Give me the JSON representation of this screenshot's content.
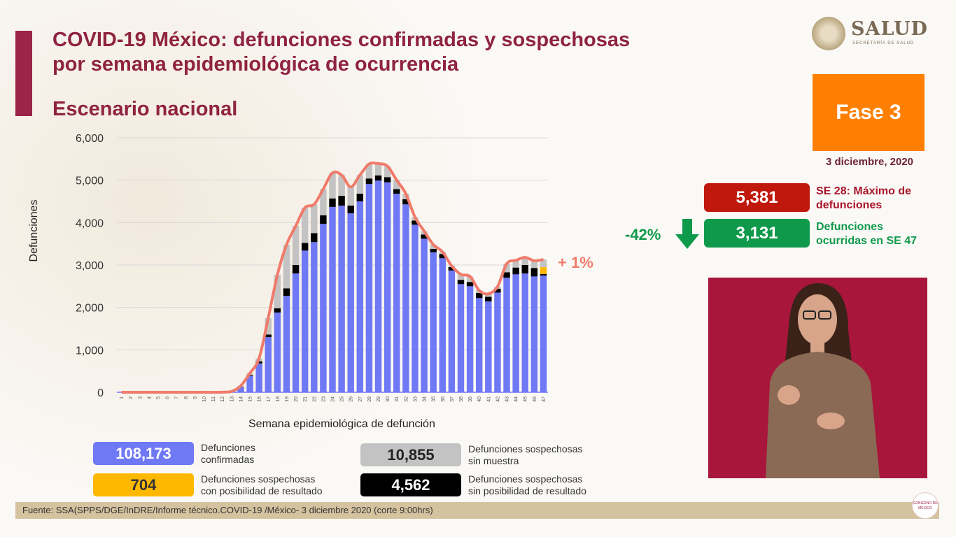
{
  "header": {
    "title_line1": "COVID-19 México: defunciones confirmadas y sospechosas",
    "title_line2": "por semana epidemiológica de ocurrencia",
    "subtitle": "Escenario nacional"
  },
  "logo": {
    "name": "SALUD",
    "sub": "SECRETARÍA DE SALUD"
  },
  "phase": {
    "label": "Fase 3",
    "color": "#ff8000"
  },
  "date": "3 diciembre, 2020",
  "kpis": {
    "max": {
      "value": "5,381",
      "label_line1": "SE 28: Máximo de",
      "label_line2": "defunciones",
      "color": "#c0180c"
    },
    "current": {
      "value": "3,131",
      "label_line1": "Defunciones",
      "label_line2": "ocurridas en SE 47",
      "color": "#0f9a4b"
    },
    "change": "-42%"
  },
  "legend": [
    {
      "value": "108,173",
      "label_line1": "Defunciones",
      "label_line2": "confirmadas",
      "color": "#6f78f5"
    },
    {
      "value": "10,855",
      "label_line1": "Defunciones sospechosas",
      "label_line2": "sin muestra",
      "color": "#c3c3c3"
    },
    {
      "value": "704",
      "label_line1": "Defunciones sospechosas",
      "label_line2": "con posibilidad de resultado",
      "color": "#ffb800"
    },
    {
      "value": "4,562",
      "label_line1": "Defunciones sospechosas",
      "label_line2": "sin posibilidad de resultado",
      "color": "#000000"
    }
  ],
  "chart_data": {
    "type": "bar",
    "stacked": true,
    "xlabel": "Semana epidemiológica de defunción",
    "ylabel": "Defunciones",
    "ylim": [
      0,
      6000
    ],
    "yticks": [
      "0",
      "1,000",
      "2,000",
      "3,000",
      "4,000",
      "5,000",
      "6,000"
    ],
    "grid": true,
    "annotation": "+ 1%",
    "categories": [
      "1",
      "2",
      "3",
      "4",
      "5",
      "6",
      "7",
      "8",
      "9",
      "10",
      "11",
      "12",
      "13",
      "14",
      "15",
      "16",
      "17",
      "18",
      "19",
      "20",
      "21",
      "22",
      "23",
      "24",
      "25",
      "26",
      "27",
      "28",
      "29",
      "30",
      "31",
      "32",
      "33",
      "34",
      "35",
      "36",
      "37",
      "38",
      "39",
      "40",
      "41",
      "42",
      "43",
      "44",
      "45",
      "46",
      "47"
    ],
    "series": [
      {
        "name": "Defunciones confirmadas",
        "color": "#6f78f5",
        "values": [
          0,
          0,
          0,
          0,
          0,
          0,
          0,
          0,
          0,
          0,
          0,
          3,
          15,
          120,
          380,
          680,
          1300,
          1880,
          2270,
          2800,
          3340,
          3540,
          3970,
          4370,
          4400,
          4220,
          4500,
          4910,
          4990,
          4950,
          4680,
          4430,
          3950,
          3620,
          3300,
          3160,
          2870,
          2550,
          2500,
          2220,
          2140,
          2350,
          2700,
          2780,
          2800,
          2730,
          2750
        ]
      },
      {
        "name": "Defunciones sospechosas sin posibilidad de resultado",
        "color": "#000000",
        "values": [
          0,
          0,
          0,
          0,
          0,
          0,
          0,
          0,
          0,
          0,
          0,
          0,
          0,
          10,
          20,
          50,
          60,
          100,
          180,
          200,
          180,
          210,
          200,
          200,
          230,
          180,
          180,
          130,
          120,
          120,
          110,
          120,
          100,
          100,
          80,
          100,
          80,
          100,
          100,
          120,
          110,
          90,
          130,
          160,
          200,
          200,
          40
        ]
      },
      {
        "name": "Defunciones sospechosas con posibilidad de resultado",
        "color": "#ffb800",
        "values": [
          0,
          0,
          0,
          0,
          0,
          0,
          0,
          0,
          0,
          0,
          0,
          0,
          0,
          0,
          0,
          0,
          0,
          0,
          0,
          0,
          0,
          0,
          0,
          0,
          0,
          0,
          0,
          0,
          0,
          0,
          0,
          0,
          0,
          0,
          0,
          0,
          0,
          0,
          0,
          0,
          0,
          0,
          0,
          0,
          0,
          0,
          160
        ]
      },
      {
        "name": "Defunciones sospechosas sin muestra",
        "color": "#c3c3c3",
        "values": [
          0,
          0,
          0,
          0,
          0,
          0,
          0,
          0,
          0,
          0,
          0,
          0,
          5,
          20,
          50,
          70,
          390,
          790,
          1030,
          920,
          830,
          680,
          620,
          600,
          490,
          440,
          440,
          341,
          280,
          260,
          210,
          130,
          80,
          80,
          100,
          50,
          30,
          130,
          130,
          60,
          70,
          50,
          200,
          170,
          180,
          170,
          181
        ]
      }
    ],
    "trend_line_color": "#f07b6b"
  },
  "footer": "Fuente: SSA(SPPS/DGE/InDRE/Informe técnico.COVID-19 /México- 3 diciembre 2020 (corte 9:00hrs)",
  "gob_logo": "GOBIERNO DE MÉXICO"
}
